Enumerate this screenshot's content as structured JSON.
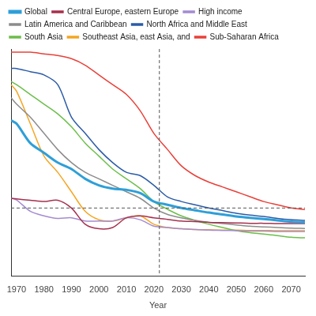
{
  "chart_data": {
    "type": "line",
    "x_label": "Year",
    "x": [
      1968,
      1970,
      1975,
      1980,
      1985,
      1990,
      1995,
      2000,
      2005,
      2010,
      2015,
      2020,
      2025,
      2030,
      2035,
      2040,
      2045,
      2050,
      2055,
      2060,
      2065,
      2070,
      2075
    ],
    "xlim": [
      1968,
      2075
    ],
    "xticks": [
      1970,
      1980,
      1990,
      2000,
      2010,
      2020,
      2030,
      2040,
      2050,
      2060,
      2070
    ],
    "ylim": [
      0,
      7
    ],
    "tick_labels": "x",
    "grid": false,
    "legend": "top",
    "vline": 2022,
    "hline": 2.1,
    "series": [
      {
        "name": "Global",
        "color": "#2e9fd8",
        "values": [
          4.8,
          4.7,
          4.1,
          3.8,
          3.5,
          3.3,
          3.0,
          2.8,
          2.7,
          2.66,
          2.56,
          2.3,
          2.2,
          2.1,
          2.03,
          1.96,
          1.9,
          1.84,
          1.8,
          1.76,
          1.72,
          1.68,
          1.66
        ]
      },
      {
        "name": "Central Europe, eastern Europe",
        "color": "#a6304e",
        "values": [
          2.4,
          2.38,
          2.34,
          2.3,
          2.34,
          2.1,
          1.6,
          1.46,
          1.5,
          1.8,
          1.86,
          1.8,
          1.75,
          1.7,
          1.68,
          1.66,
          1.65,
          1.64,
          1.63,
          1.63,
          1.62,
          1.62,
          1.62
        ]
      },
      {
        "name": "High income",
        "color": "#a48bd1",
        "values": [
          2.4,
          2.35,
          2.0,
          1.86,
          1.78,
          1.8,
          1.7,
          1.7,
          1.7,
          1.8,
          1.74,
          1.54,
          1.5,
          1.46,
          1.44,
          1.42,
          1.41,
          1.4,
          1.39,
          1.39,
          1.38,
          1.38,
          1.38
        ]
      },
      {
        "name": "Latin America and Caribbean",
        "color": "#8c8c8c",
        "values": [
          5.5,
          5.3,
          4.9,
          4.4,
          3.9,
          3.5,
          3.2,
          3.0,
          2.8,
          2.6,
          2.4,
          2.1,
          1.9,
          1.8,
          1.72,
          1.66,
          1.62,
          1.58,
          1.54,
          1.52,
          1.5,
          1.48,
          1.47
        ]
      },
      {
        "name": "North Africa and Middle East",
        "color": "#2b5ca8",
        "values": [
          6.4,
          6.4,
          6.3,
          6.2,
          5.9,
          4.9,
          4.4,
          3.9,
          3.5,
          3.2,
          3.1,
          2.8,
          2.44,
          2.3,
          2.2,
          2.1,
          2.02,
          1.94,
          1.88,
          1.84,
          1.78,
          1.74,
          1.72
        ]
      },
      {
        "name": "South Asia",
        "color": "#6cbf4a",
        "values": [
          6.0,
          5.9,
          5.6,
          5.3,
          5.0,
          4.6,
          4.1,
          3.7,
          3.3,
          3.0,
          2.7,
          2.3,
          2.06,
          1.86,
          1.72,
          1.6,
          1.5,
          1.4,
          1.34,
          1.3,
          1.25,
          1.2,
          1.18
        ]
      },
      {
        "name": "Southeast Asia, east Asia, and",
        "color": "#f5a623",
        "values": [
          5.9,
          5.7,
          4.7,
          3.7,
          3.2,
          2.6,
          2.0,
          1.74,
          1.7,
          1.8,
          1.86,
          1.6,
          1.5,
          1.46,
          1.44,
          1.43,
          1.42,
          1.42,
          1.41,
          1.41,
          1.4,
          1.4,
          1.4
        ]
      },
      {
        "name": "Sub-Saharan Africa",
        "color": "#e8413a",
        "values": [
          6.9,
          6.9,
          6.9,
          6.85,
          6.8,
          6.7,
          6.5,
          6.2,
          5.9,
          5.6,
          5.1,
          4.4,
          3.9,
          3.4,
          3.1,
          2.9,
          2.75,
          2.6,
          2.45,
          2.3,
          2.2,
          2.1,
          2.05
        ]
      }
    ]
  }
}
